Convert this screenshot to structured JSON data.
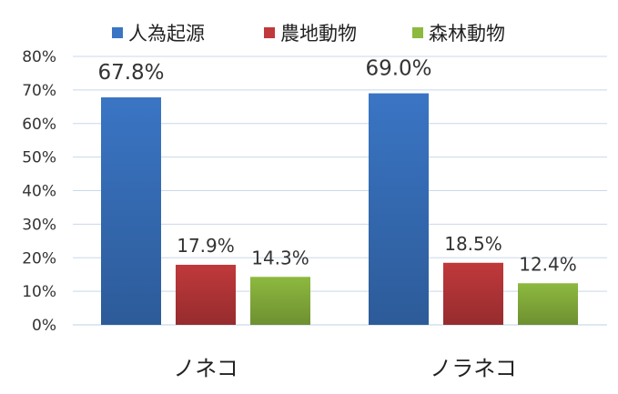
{
  "chart_data": {
    "type": "bar",
    "categories": [
      "ノネコ",
      "ノラネコ"
    ],
    "series": [
      {
        "name": "人為起源",
        "values": [
          67.8,
          69.0
        ],
        "labels": [
          "67.8%",
          "69.0%"
        ],
        "color": "#3A75C4"
      },
      {
        "name": "農地動物",
        "values": [
          17.9,
          18.5
        ],
        "labels": [
          "17.9%",
          "18.5%"
        ],
        "color": "#C0393B"
      },
      {
        "name": "森林動物",
        "values": [
          14.3,
          12.4
        ],
        "labels": [
          "14.3%",
          "12.4%"
        ],
        "color": "#8DB93F"
      }
    ],
    "ylim": [
      0,
      80
    ],
    "yticks": [
      "0%",
      "10%",
      "20%",
      "30%",
      "40%",
      "50%",
      "60%",
      "70%",
      "80%"
    ],
    "grid": true,
    "legend_position": "top"
  }
}
